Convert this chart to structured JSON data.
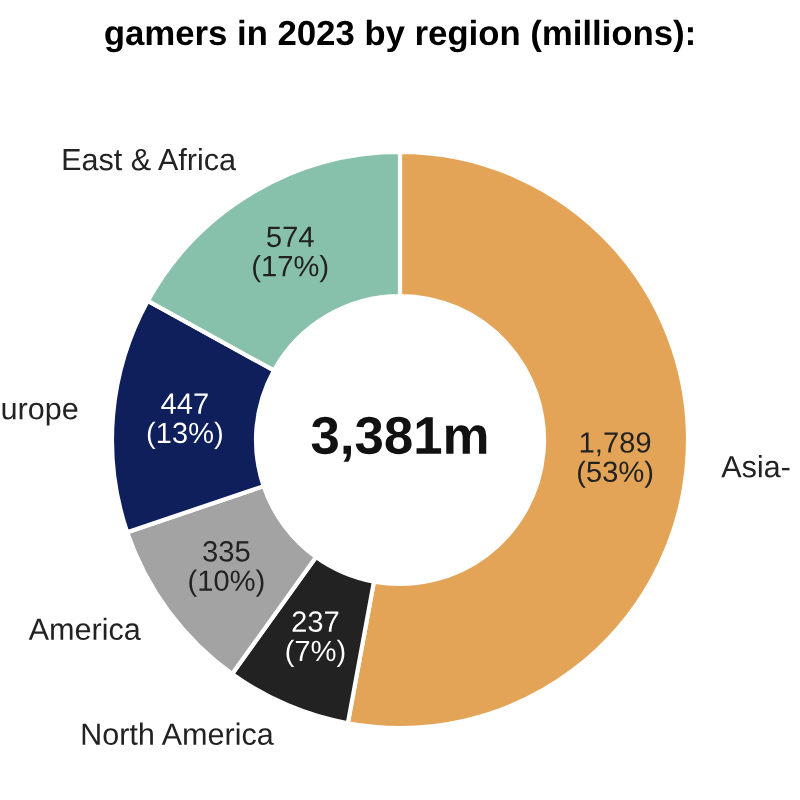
{
  "chart_data": {
    "type": "donut",
    "title": "gamers in 2023 by region (millions):",
    "categories": [
      "Asia-",
      "North America",
      "America",
      "urope",
      "East & Africa"
    ],
    "values": [
      1789,
      237,
      335,
      447,
      574
    ],
    "colors": [
      "#e3a457",
      "#222222",
      "#a3a3a3",
      "#0e1f5b",
      "#88c1ab"
    ],
    "value_labels": [
      "1,789\n(53%)",
      "237\n(7%)",
      "335\n(10%)",
      "447\n(13%)",
      "574\n(17%)"
    ],
    "annotations": [
      "3,381m"
    ],
    "legend": false
  }
}
